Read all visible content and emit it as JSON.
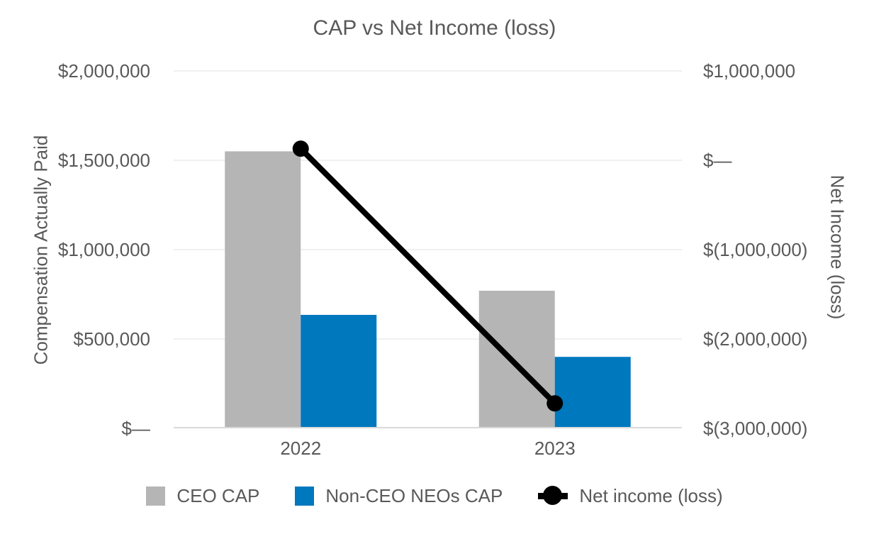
{
  "chart_data": {
    "type": "bar",
    "subtype": "grouped-bars-with-line-overlay",
    "title": "CAP vs Net Income (loss)",
    "categories": [
      "2022",
      "2023"
    ],
    "series": [
      {
        "name": "CEO CAP",
        "type": "bar",
        "axis": "left",
        "color": "#B5B5B5",
        "values": [
          1550000,
          770000
        ]
      },
      {
        "name": "Non-CEO NEOs CAP",
        "type": "bar",
        "axis": "left",
        "color": "#0078BE",
        "values": [
          635000,
          400000
        ]
      },
      {
        "name": "Net income (loss)",
        "type": "line",
        "axis": "right",
        "color": "#000000",
        "values": [
          130000,
          -2720000
        ]
      }
    ],
    "left_axis": {
      "title": "Compensation Actually Paid",
      "min": 0,
      "max": 2000000,
      "ticks": [
        "$2,000,000",
        "$1,500,000",
        "$1,000,000",
        "$500,000",
        "$—"
      ]
    },
    "right_axis": {
      "title": "Net Income (loss)",
      "min": -3000000,
      "max": 1000000,
      "ticks": [
        "$1,000,000",
        "$—",
        "$(1,000,000)",
        "$(2,000,000)",
        "$(3,000,000)"
      ]
    },
    "legend": [
      {
        "label": "CEO CAP",
        "marker": "square",
        "color": "#B5B5B5"
      },
      {
        "label": "Non-CEO NEOs CAP",
        "marker": "square",
        "color": "#0078BE"
      },
      {
        "label": "Net income (loss)",
        "marker": "line-dot",
        "color": "#000000"
      }
    ],
    "layout": {
      "grid": true,
      "legend_position": "bottom",
      "gridline_count": 5
    },
    "colors": {
      "text": "#595959",
      "gridline": "#ECECEC",
      "axis_line": "#D9D9D9",
      "background": "#FFFFFF"
    }
  }
}
